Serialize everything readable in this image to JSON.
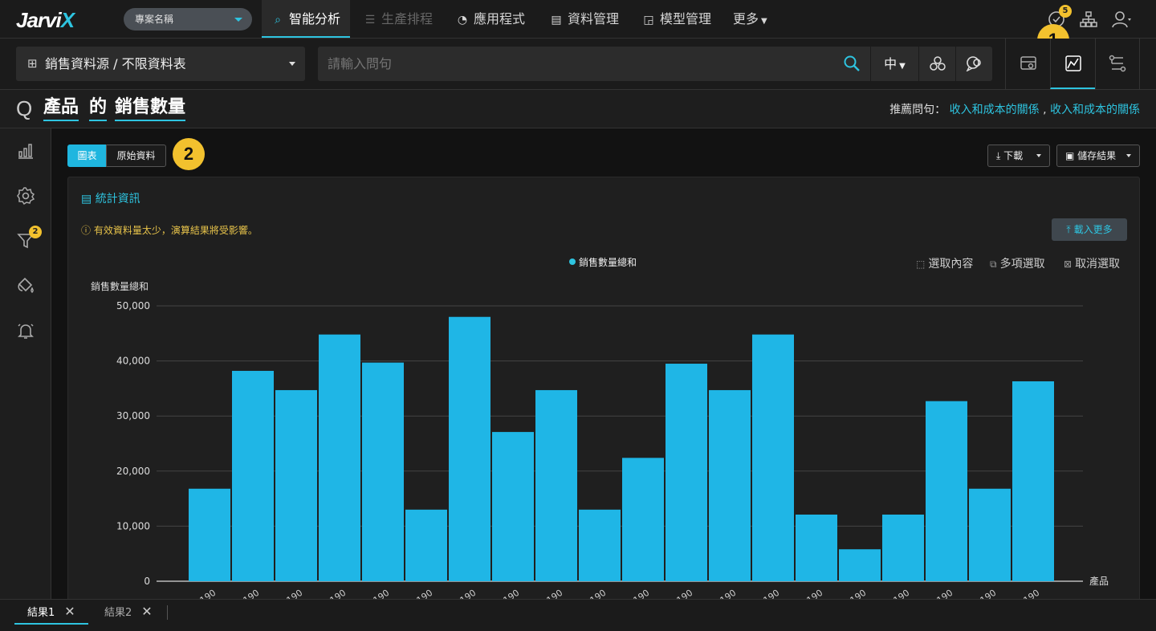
{
  "app": {
    "logo_main": "Jarvi",
    "logo_accent": "X"
  },
  "project": {
    "label": "專案名稱"
  },
  "nav": {
    "items": [
      {
        "label": "智能分析",
        "icon": "analysis-icon",
        "state": "active"
      },
      {
        "label": "生產排程",
        "icon": "schedule-icon",
        "state": "disabled"
      },
      {
        "label": "應用程式",
        "icon": "gauge-icon",
        "state": "normal"
      },
      {
        "label": "資料管理",
        "icon": "data-icon",
        "state": "normal"
      },
      {
        "label": "模型管理",
        "icon": "model-icon",
        "state": "normal"
      },
      {
        "label": "更多",
        "icon": "caret-down-icon",
        "state": "normal"
      }
    ],
    "notification_count": "5"
  },
  "markers": {
    "m1": "1",
    "m2": "2"
  },
  "datasource": {
    "label": "銷售資料源 / 不限資料表"
  },
  "search": {
    "placeholder": "請輸入問句",
    "lang": "中"
  },
  "question": {
    "prefix": "Q",
    "w1": "產品",
    "w2": "的",
    "w3": "銷售數量"
  },
  "recommend": {
    "label": "推薦問句：",
    "link1": "收入和成本的關係",
    "sep": ",",
    "link2": "收入和成本的關係"
  },
  "sidebar": {
    "filter_badge": "2"
  },
  "view_tabs": {
    "chart": "圖表",
    "raw": "原始資料"
  },
  "actions": {
    "download": "下載",
    "save": "儲存結果"
  },
  "panel": {
    "stats_title": "統計資訊",
    "warning": "有效資料量太少，演算結果將受影響。",
    "load_more": "載入更多",
    "select_content": "選取內容",
    "multi_select": "多項選取",
    "cancel_select": "取消選取"
  },
  "chart_data": {
    "type": "bar",
    "legend": "銷售數量總和",
    "legend_position": "top-center",
    "ylabel": "銷售數量總和",
    "xlabel": "產品",
    "ylim": [
      0,
      50000
    ],
    "yticks": [
      "0",
      "10,000",
      "20,000",
      "30,000",
      "40,000",
      "50,000"
    ],
    "grid": true,
    "color": "#1fb6e6",
    "categories": [
      "190",
      "190",
      "190",
      "190",
      "190",
      "190",
      "190",
      "190",
      "190",
      "190",
      "190",
      "190",
      "190",
      "190",
      "190",
      "190",
      "190",
      "190",
      "190",
      "190"
    ],
    "values": [
      16800,
      38200,
      34700,
      44800,
      39700,
      13000,
      48000,
      27100,
      34700,
      13000,
      22400,
      39500,
      34700,
      44800,
      12100,
      5800,
      12100,
      32700,
      16800,
      36300
    ]
  },
  "result_tabs": [
    {
      "label": "結果1"
    },
    {
      "label": "結果2"
    }
  ]
}
